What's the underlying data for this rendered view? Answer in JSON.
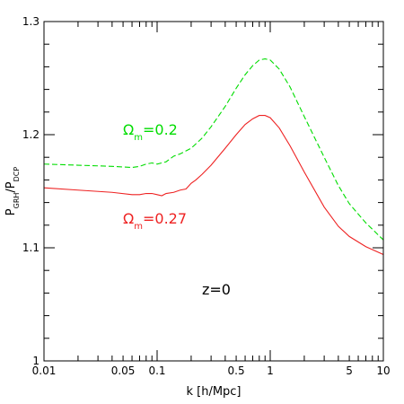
{
  "chart_data": {
    "type": "line",
    "x_scale": "log",
    "xlabel": "k [h/Mpc]",
    "ylabel": {
      "base": "P",
      "sub1": "GRH",
      "mid": "/P",
      "sub2": "DCP"
    },
    "xlim": [
      0.01,
      10
    ],
    "ylim": [
      1.0,
      1.3
    ],
    "x_ticks": [
      {
        "value": 0.01,
        "label": "0.01"
      },
      {
        "value": 0.05,
        "label": "0.05"
      },
      {
        "value": 0.1,
        "label": "0.1"
      },
      {
        "value": 0.5,
        "label": "0.5"
      },
      {
        "value": 1,
        "label": "1"
      },
      {
        "value": 5,
        "label": "5"
      },
      {
        "value": 10,
        "label": "10"
      }
    ],
    "y_ticks": [
      {
        "value": 1.0,
        "label": "1"
      },
      {
        "value": 1.1,
        "label": "1.1"
      },
      {
        "value": 1.2,
        "label": "1.2"
      },
      {
        "value": 1.3,
        "label": "1.3"
      }
    ],
    "grid": false,
    "series": [
      {
        "color": "#00dd00",
        "dash": "dashed",
        "x": [
          0.01,
          0.02,
          0.04,
          0.06,
          0.07,
          0.08,
          0.09,
          0.1,
          0.12,
          0.14,
          0.16,
          0.2,
          0.25,
          0.3,
          0.4,
          0.5,
          0.6,
          0.7,
          0.8,
          0.9,
          1.0,
          1.2,
          1.5,
          2,
          3,
          4,
          5,
          7,
          10
        ],
        "y": [
          1.174,
          1.173,
          1.172,
          1.171,
          1.172,
          1.174,
          1.175,
          1.174,
          1.176,
          1.181,
          1.183,
          1.188,
          1.197,
          1.207,
          1.225,
          1.241,
          1.253,
          1.261,
          1.266,
          1.267,
          1.266,
          1.258,
          1.242,
          1.216,
          1.18,
          1.155,
          1.139,
          1.122,
          1.107
        ]
      },
      {
        "color": "#ee2222",
        "dash": "solid",
        "x": [
          0.01,
          0.02,
          0.04,
          0.06,
          0.07,
          0.08,
          0.09,
          0.1,
          0.11,
          0.12,
          0.14,
          0.16,
          0.18,
          0.2,
          0.22,
          0.25,
          0.3,
          0.4,
          0.5,
          0.6,
          0.7,
          0.8,
          0.9,
          1.0,
          1.2,
          1.5,
          2,
          3,
          4,
          5,
          7,
          10
        ],
        "y": [
          1.153,
          1.151,
          1.149,
          1.147,
          1.147,
          1.148,
          1.148,
          1.147,
          1.146,
          1.148,
          1.149,
          1.151,
          1.152,
          1.157,
          1.16,
          1.165,
          1.173,
          1.188,
          1.2,
          1.209,
          1.214,
          1.217,
          1.217,
          1.215,
          1.206,
          1.19,
          1.167,
          1.136,
          1.119,
          1.11,
          1.101,
          1.094
        ]
      }
    ],
    "annotations": [
      {
        "id": "omega_02",
        "prefix": "Ω",
        "sub": "m",
        "suffix": "=0.2",
        "color": "#00dd00"
      },
      {
        "id": "omega_027",
        "prefix": "Ω",
        "sub": "m",
        "suffix": "=0.27",
        "color": "#ee2222"
      },
      {
        "id": "redshift",
        "text": "z=0",
        "color": "#000000"
      }
    ]
  }
}
